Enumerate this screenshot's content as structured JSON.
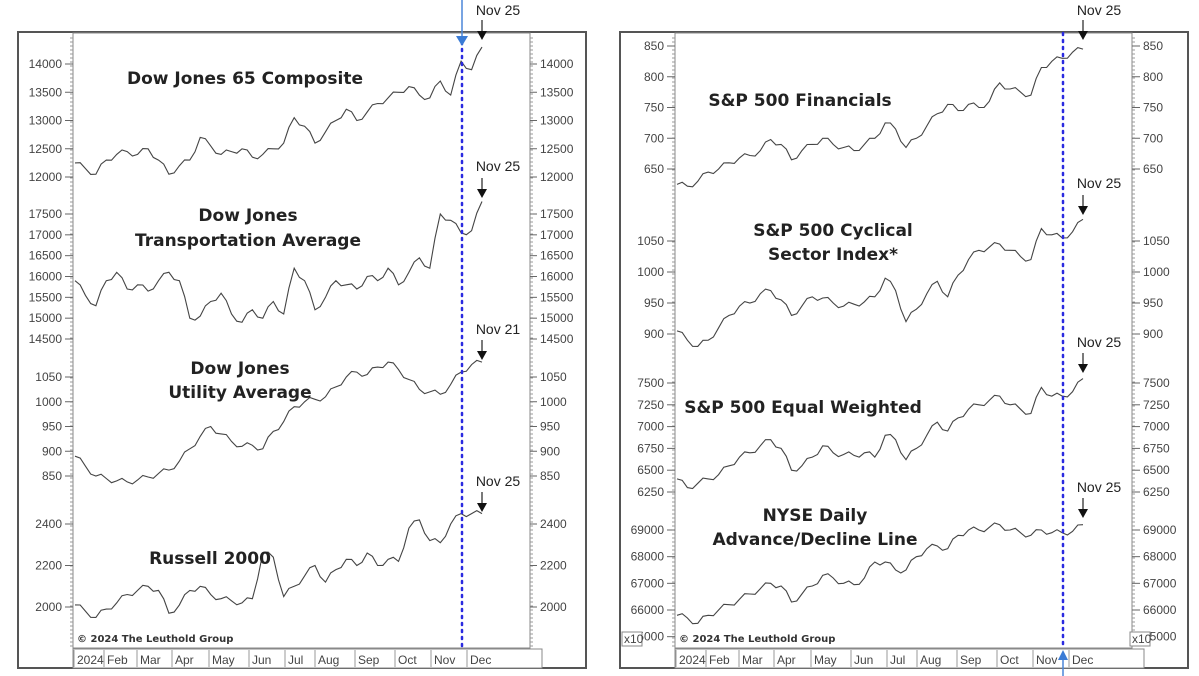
{
  "chart_data": [
    {
      "panel": "left",
      "type": "line",
      "copyright": "© 2024 The Leuthold Group",
      "x_axis": [
        "2024",
        "Feb",
        "Mar",
        "Apr",
        "May",
        "Jun",
        "Jul",
        "Aug",
        "Sep",
        "Oct",
        "Nov",
        "Dec"
      ],
      "marker_line": {
        "date": "Nov 5",
        "color": "#1a1adb",
        "style": "dotted"
      },
      "subcharts": [
        {
          "title": "Dow Jones 65 Composite",
          "annotation": "Nov 25",
          "yticks": [
            12000,
            12500,
            13000,
            13500,
            14000
          ],
          "values": [
            12250,
            12150,
            12050,
            12300,
            12400,
            12450,
            12400,
            12500,
            12300,
            12050,
            12200,
            12300,
            12700,
            12550,
            12400,
            12450,
            12500,
            12350,
            12400,
            12500,
            12600,
            13050,
            12900,
            12600,
            12800,
            13000,
            13200,
            13000,
            13150,
            13300,
            13400,
            13500,
            13600,
            13450,
            13400,
            13700,
            13450,
            14050,
            13900,
            14300
          ]
        },
        {
          "title": "Dow Jones Transportation Average",
          "annotation": "Nov 25",
          "yticks": [
            14500,
            15000,
            15500,
            16000,
            16500,
            17000,
            17500
          ],
          "values": [
            15900,
            15550,
            15300,
            15900,
            16100,
            15700,
            15800,
            15650,
            15900,
            16100,
            15900,
            15000,
            15050,
            15400,
            15600,
            15100,
            14900,
            15200,
            15000,
            15400,
            15100,
            16200,
            15900,
            15200,
            15500,
            15900,
            15800,
            15700,
            16000,
            15900,
            16200,
            15800,
            16100,
            16450,
            16200,
            17500,
            17350,
            17050,
            17100,
            17800
          ]
        },
        {
          "title": "Dow Jones Utility Average",
          "annotation": "Nov 21",
          "yticks": [
            850,
            900,
            950,
            1000,
            1050
          ],
          "values": [
            890,
            870,
            850,
            845,
            840,
            838,
            842,
            848,
            855,
            862,
            880,
            905,
            930,
            950,
            935,
            920,
            910,
            912,
            905,
            940,
            960,
            990,
            1000,
            1005,
            1010,
            1030,
            1050,
            1060,
            1055,
            1070,
            1080,
            1065,
            1045,
            1025,
            1020,
            1015,
            1035,
            1060,
            1075,
            1080
          ]
        },
        {
          "title": "Russell 2000",
          "annotation": "Nov 25",
          "yticks": [
            2000,
            2200,
            2400
          ],
          "values": [
            2010,
            1980,
            1950,
            1990,
            2020,
            2060,
            2080,
            2100,
            2080,
            1970,
            2010,
            2080,
            2100,
            2060,
            2040,
            2030,
            2020,
            2040,
            2260,
            2240,
            2050,
            2100,
            2150,
            2200,
            2120,
            2180,
            2230,
            2200,
            2260,
            2200,
            2230,
            2220,
            2380,
            2420,
            2320,
            2310,
            2400,
            2450,
            2450,
            2450
          ]
        }
      ]
    },
    {
      "panel": "right",
      "type": "line",
      "copyright": "© 2024 The Leuthold Group",
      "x_axis": [
        "2024",
        "Feb",
        "Mar",
        "Apr",
        "May",
        "Jun",
        "Jul",
        "Aug",
        "Sep",
        "Oct",
        "Nov",
        "Dec"
      ],
      "marker_line": {
        "date": "Nov 5",
        "color": "#1a1adb",
        "style": "dotted"
      },
      "subcharts": [
        {
          "title": "S&P 500 Financials",
          "annotation": "Nov 25",
          "yticks": [
            650,
            700,
            750,
            800,
            850
          ],
          "values": [
            625,
            622,
            630,
            645,
            650,
            660,
            668,
            672,
            680,
            698,
            690,
            665,
            680,
            690,
            700,
            690,
            685,
            680,
            690,
            700,
            725,
            715,
            685,
            700,
            720,
            740,
            755,
            745,
            755,
            750,
            760,
            790,
            780,
            775,
            770,
            815,
            825,
            830,
            840,
            845
          ]
        },
        {
          "title": "S&P 500 Cyclical Sector Index*",
          "annotation": "Nov 25",
          "yticks": [
            900,
            950,
            1000,
            1050
          ],
          "values": [
            905,
            890,
            880,
            890,
            910,
            930,
            945,
            950,
            965,
            970,
            955,
            930,
            945,
            960,
            958,
            950,
            945,
            948,
            952,
            960,
            990,
            970,
            920,
            940,
            965,
            985,
            960,
            995,
            1020,
            1035,
            1040,
            1045,
            1035,
            1025,
            1020,
            1070,
            1060,
            1055,
            1065,
            1085
          ]
        },
        {
          "title": "S&P 500 Equal Weighted",
          "annotation": "Nov 25",
          "yticks": [
            6250,
            6500,
            6750,
            7000,
            7250,
            7500
          ],
          "values": [
            6400,
            6300,
            6350,
            6400,
            6450,
            6550,
            6650,
            6700,
            6780,
            6850,
            6750,
            6500,
            6550,
            6650,
            6780,
            6700,
            6680,
            6670,
            6700,
            6650,
            6900,
            6850,
            6620,
            6750,
            6900,
            7050,
            6950,
            7100,
            7200,
            7250,
            7300,
            7350,
            7250,
            7200,
            7150,
            7450,
            7350,
            7350,
            7400,
            7550
          ]
        },
        {
          "title": "NYSE Daily Advance/Decline Line",
          "annotation": "Nov 25",
          "yticks": [
            65000,
            66000,
            67000,
            68000,
            69000
          ],
          "y_multiplier_label": "x10",
          "values": [
            65800,
            65700,
            65500,
            65800,
            66000,
            66200,
            66400,
            66600,
            66800,
            67000,
            66900,
            66300,
            66600,
            66900,
            67300,
            67200,
            67000,
            66950,
            67200,
            67800,
            67800,
            67500,
            67500,
            68000,
            68300,
            68400,
            68300,
            68800,
            69000,
            69000,
            69100,
            69200,
            69000,
            68900,
            68800,
            69000,
            68900,
            68900,
            68950,
            69200
          ]
        }
      ]
    }
  ],
  "panels": {
    "left": {
      "copyright": "© 2024 The Leuthold Group"
    },
    "right": {
      "copyright": "© 2024 The Leuthold Group",
      "multiplier_left": "x10",
      "multiplier_right": "x10"
    }
  }
}
